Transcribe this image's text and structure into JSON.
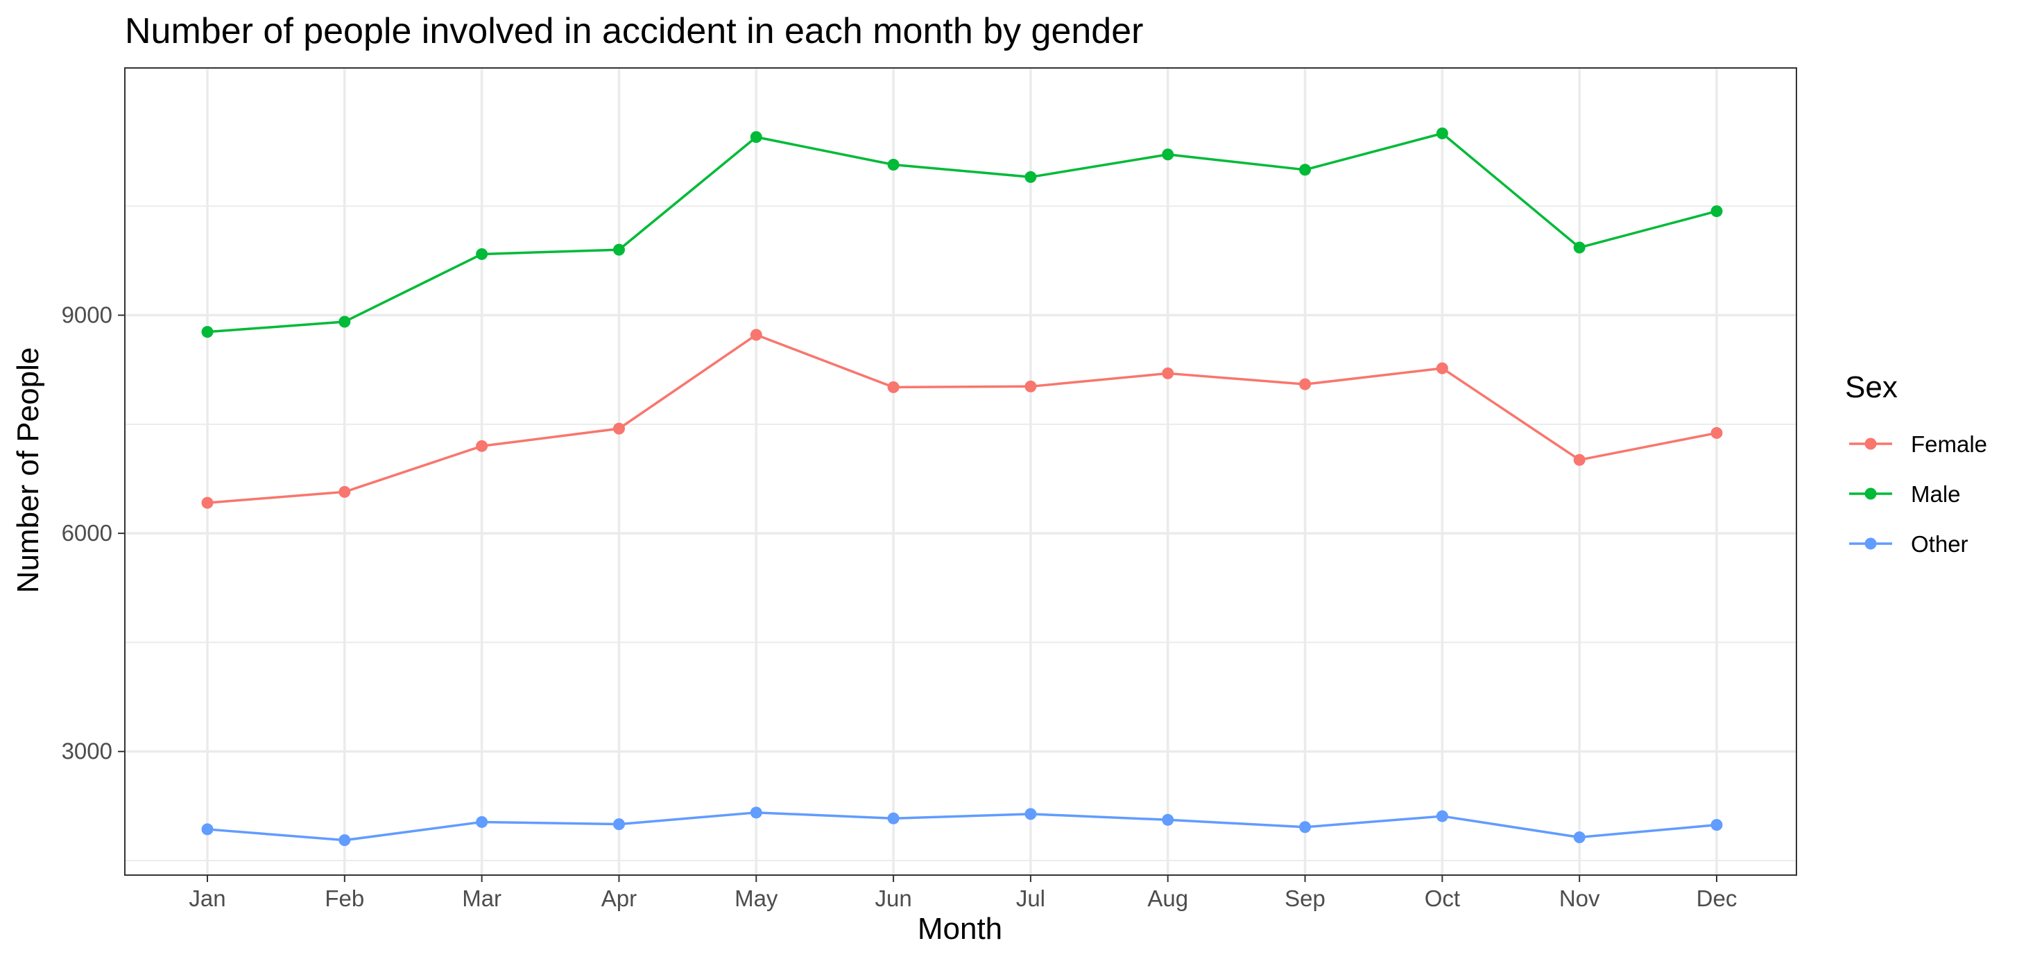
{
  "chart_data": {
    "type": "line",
    "title": "Number of people involved in accident in each month by gender",
    "xlabel": "Month",
    "ylabel": "Number of People",
    "categories": [
      "Jan",
      "Feb",
      "Mar",
      "Apr",
      "May",
      "Jun",
      "Jul",
      "Aug",
      "Sep",
      "Oct",
      "Nov",
      "Dec"
    ],
    "yticks": [
      3000,
      6000,
      9000
    ],
    "ylim": [
      1300,
      12400
    ],
    "grid": true,
    "legend": {
      "title": "Sex",
      "position": "right"
    },
    "series": [
      {
        "name": "Female",
        "color": "#F8766D",
        "values": [
          6420,
          6570,
          7200,
          7440,
          8730,
          8010,
          8020,
          8200,
          8050,
          8270,
          7010,
          7380
        ]
      },
      {
        "name": "Male",
        "color": "#00BA38",
        "values": [
          8770,
          8910,
          9840,
          9900,
          11450,
          11070,
          10900,
          11210,
          11000,
          11500,
          9930,
          10430
        ]
      },
      {
        "name": "Other",
        "color": "#619CFF",
        "values": [
          1930,
          1780,
          2030,
          2000,
          2160,
          2080,
          2140,
          2060,
          1960,
          2110,
          1820,
          1990
        ]
      }
    ]
  }
}
